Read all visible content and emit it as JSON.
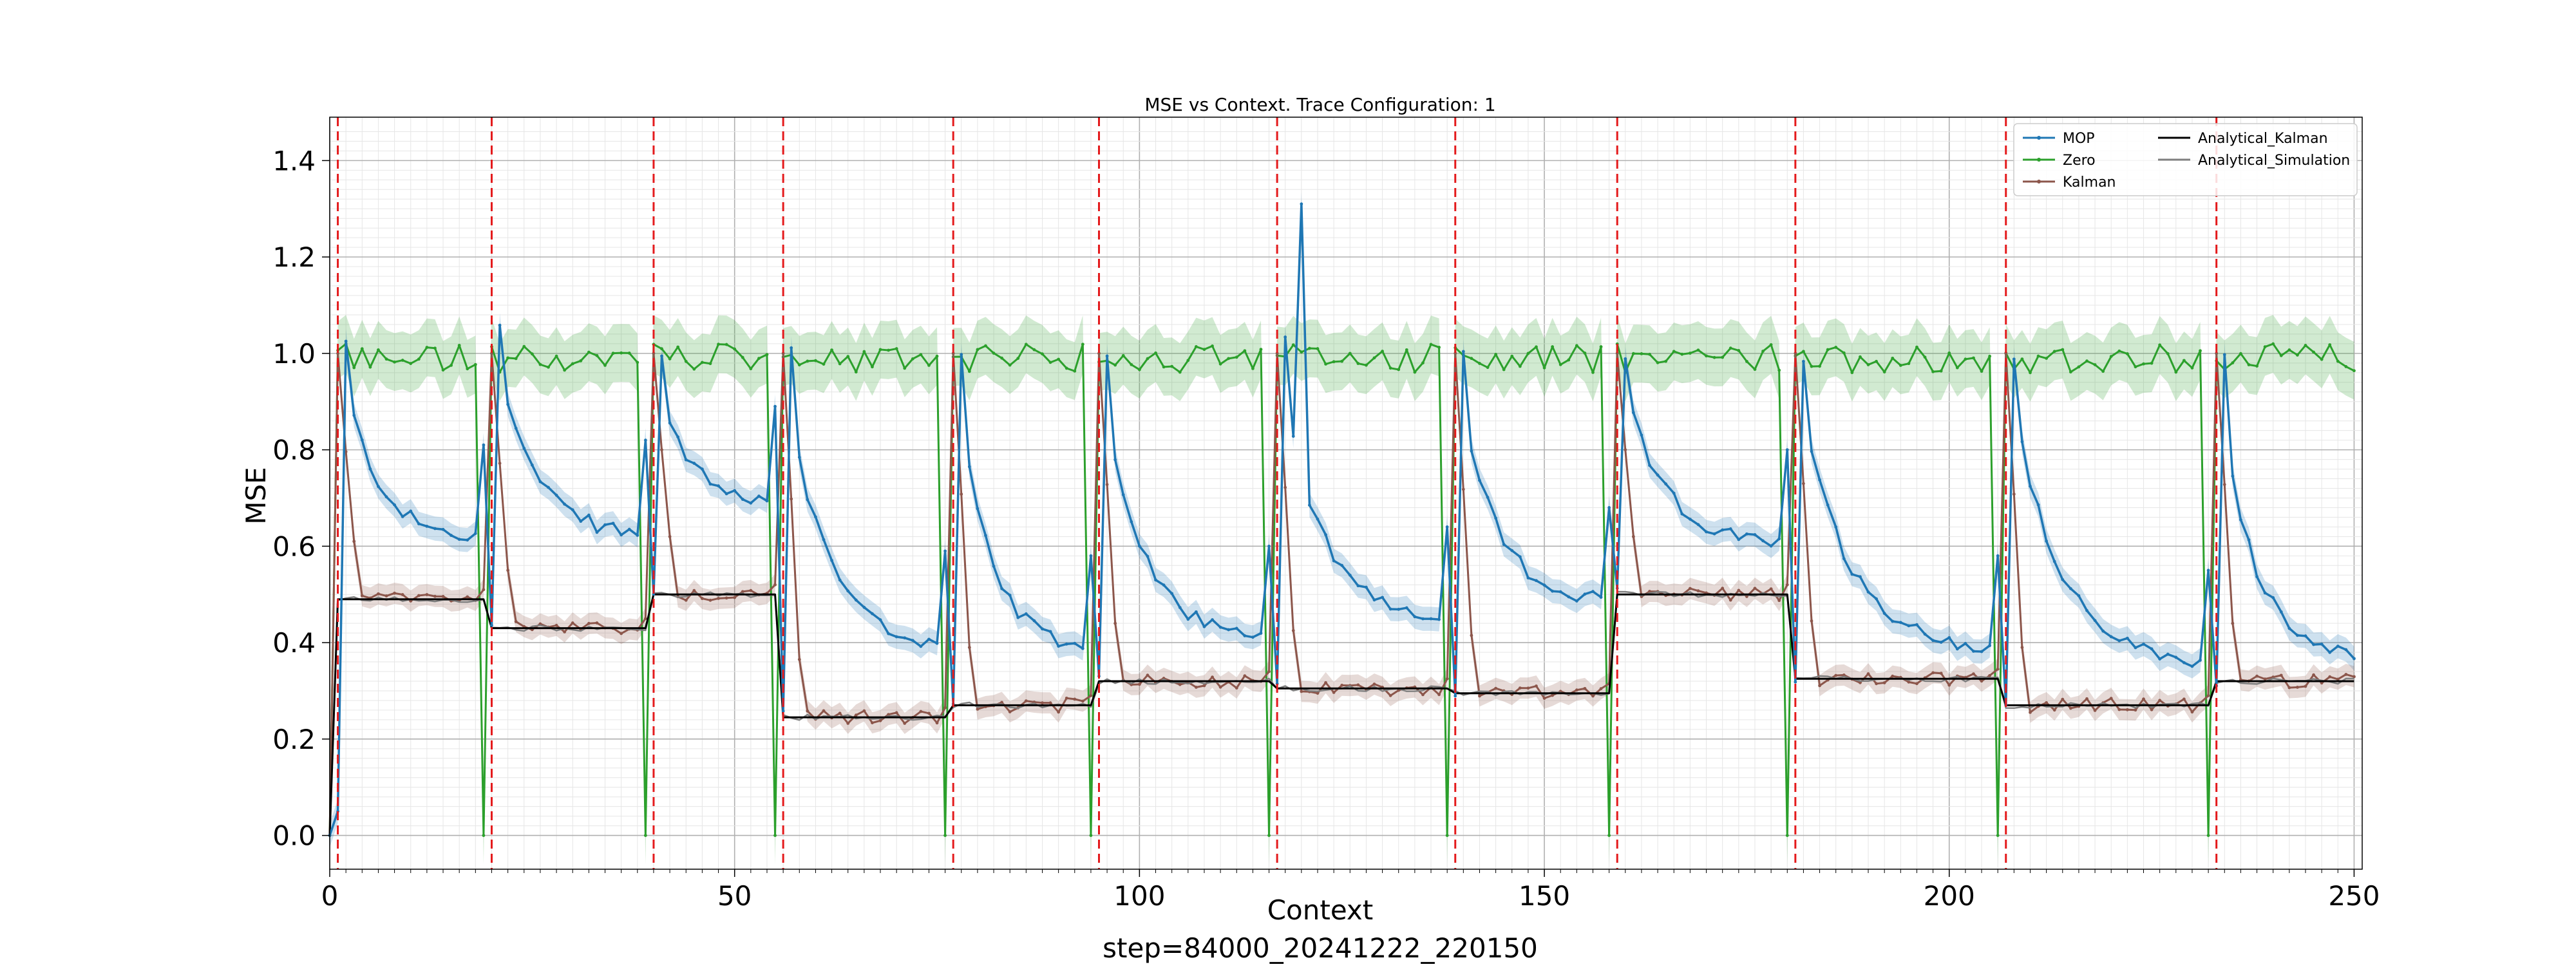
{
  "chart_data": {
    "type": "line",
    "title": "MSE vs Context. Trace Configuration: 1",
    "xlabel": "Context",
    "ylabel": "MSE",
    "footer": "step=84000_20241222_220150",
    "xlim": [
      0,
      251
    ],
    "ylim": [
      -0.07,
      1.49
    ],
    "x_ticks": [
      0,
      50,
      100,
      150,
      200,
      250
    ],
    "x_tick_labels": [
      "0",
      "50",
      "100",
      "150",
      "200",
      "250"
    ],
    "y_ticks": [
      0.0,
      0.2,
      0.4,
      0.6,
      0.8,
      1.0,
      1.2,
      1.4
    ],
    "y_tick_labels": [
      "0.0",
      "0.2",
      "0.4",
      "0.6",
      "0.8",
      "1.0",
      "1.2",
      "1.4"
    ],
    "grid": "major and minor",
    "legend_position": "upper right",
    "segment_boundaries": [
      1,
      20,
      40,
      56,
      77,
      95,
      117,
      139,
      159,
      181,
      207,
      233
    ],
    "segments": [
      {
        "start": 1,
        "end": 20,
        "kalman_level": 0.49,
        "mop_start": 1.02,
        "mop_end": 0.61
      },
      {
        "start": 20,
        "end": 40,
        "kalman_level": 0.43,
        "mop_start": 1.06,
        "mop_end": 0.62
      },
      {
        "start": 40,
        "end": 56,
        "kalman_level": 0.5,
        "mop_start": 1.0,
        "mop_end": 0.69
      },
      {
        "start": 56,
        "end": 77,
        "kalman_level": 0.245,
        "mop_start": 1.0,
        "mop_end": 0.39
      },
      {
        "start": 77,
        "end": 95,
        "kalman_level": 0.27,
        "mop_start": 1.0,
        "mop_end": 0.38
      },
      {
        "start": 95,
        "end": 117,
        "kalman_level": 0.32,
        "mop_start": 0.99,
        "mop_end": 0.4
      },
      {
        "start": 117,
        "end": 139,
        "kalman_level": 0.305,
        "mop_start": 1.02,
        "mop_end": 0.44
      },
      {
        "start": 139,
        "end": 159,
        "kalman_level": 0.295,
        "mop_start": 1.0,
        "mop_end": 0.48
      },
      {
        "start": 159,
        "end": 181,
        "kalman_level": 0.5,
        "mop_start": 1.0,
        "mop_end": 0.6
      },
      {
        "start": 181,
        "end": 207,
        "kalman_level": 0.325,
        "mop_start": 0.97,
        "mop_end": 0.38
      },
      {
        "start": 207,
        "end": 233,
        "kalman_level": 0.27,
        "mop_start": 1.0,
        "mop_end": 0.35
      },
      {
        "start": 233,
        "end": 251,
        "kalman_level": 0.32,
        "mop_start": 1.0,
        "mop_end": 0.37
      }
    ],
    "series": [
      {
        "name": "MOP",
        "color": "#1f77b4",
        "band_color": "#1f77b4"
      },
      {
        "name": "Zero",
        "color": "#2ca02c",
        "band_color": "#2ca02c"
      },
      {
        "name": "Kalman",
        "color": "#8c564b",
        "band_color": "#8c564b"
      },
      {
        "name": "Analytical_Kalman",
        "color": "#000000"
      },
      {
        "name": "Analytical_Simulation",
        "color": "#7f7f7f"
      }
    ],
    "annotations": [
      {
        "series": "MOP",
        "x": 120,
        "y": 1.31,
        "label": "spike"
      }
    ]
  }
}
